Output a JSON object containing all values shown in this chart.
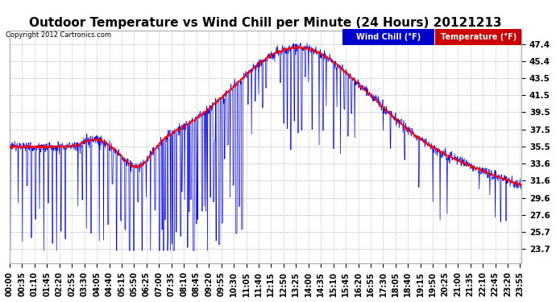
{
  "title": "Outdoor Temperature vs Wind Chill per Minute (24 Hours) 20121213",
  "copyright": "Copyright 2012 Cartronics.com",
  "legend_wind_chill": "Wind Chill (°F)",
  "legend_temperature": "Temperature (°F)",
  "wind_chill_color": "#0000ff",
  "temperature_color": "#ff0000",
  "legend_wc_bg": "#0000cc",
  "legend_temp_bg": "#cc0000",
  "background_color": "#ffffff",
  "grid_color": "#bbbbbb",
  "yticks": [
    23.7,
    25.7,
    27.6,
    29.6,
    31.6,
    33.6,
    35.5,
    37.5,
    39.5,
    41.5,
    43.5,
    45.4,
    47.4
  ],
  "ylim": [
    22.0,
    49.0
  ],
  "title_fontsize": 11,
  "tick_fontsize": 7.5,
  "copyright_fontsize": 6
}
